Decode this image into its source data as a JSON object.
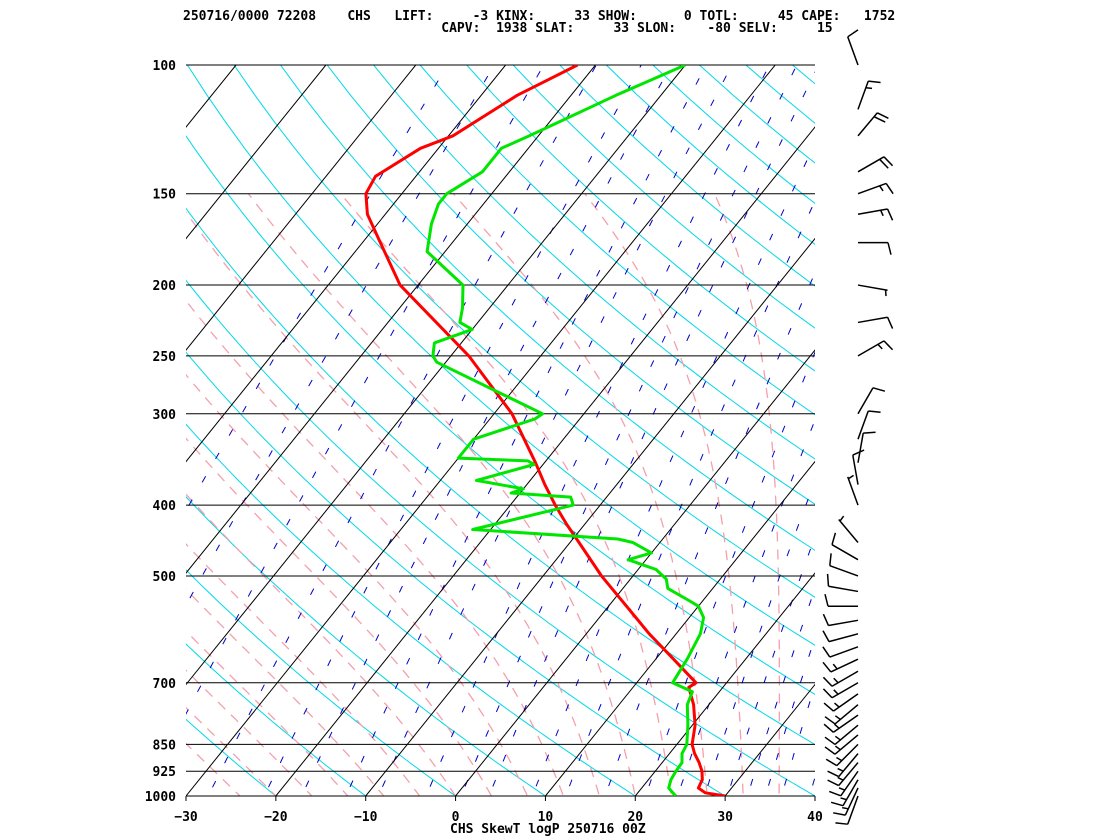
{
  "header": {
    "line1": "250716/0000 72208    CHS   LIFT:     -3 KINX:     33 SHOW:      0 TOTL:     45 CAPE:   1752",
    "line2": "                                 CAPV:  1938 SLAT:     33 SLON:    -80 SELV:     15"
  },
  "footer": "CHS SkewT logP 250716 00Z",
  "chart_data": {
    "type": "line",
    "title": "CHS SkewT logP 250716 00Z",
    "xlabel": "",
    "ylabel": "",
    "xlim": [
      -30,
      40
    ],
    "ylim": [
      1000,
      100
    ],
    "y_scale": "log (inverted)",
    "grid": true,
    "x_ticks": [
      -30,
      -20,
      -10,
      0,
      10,
      20,
      30,
      40
    ],
    "pressure_ticks": [
      100,
      150,
      200,
      250,
      300,
      400,
      500,
      700,
      850,
      925,
      1000
    ],
    "station": {
      "id": "72208",
      "name": "CHS",
      "lat": 33,
      "lon": -80,
      "elev": 15
    },
    "indices": {
      "LIFT": -3,
      "KINX": 33,
      "SHOW": 0,
      "TOTL": 45,
      "CAPE": 1752,
      "CAPV": 1938
    },
    "colors": {
      "temperature": "#ff0000",
      "dewpoint": "#00e600",
      "isotherm": "#000000",
      "dry_adiabat": "#00d8e8",
      "moist_adiabat": "#f4a0ac",
      "mixing_ratio": "#0000c8",
      "wind_barb": "#000000"
    },
    "series": [
      {
        "key": "temperature",
        "p": [
          1000,
          990,
          975,
          950,
          925,
          900,
          875,
          850,
          800,
          750,
          725,
          710,
          700,
          650,
          600,
          550,
          500,
          450,
          425,
          400,
          375,
          350,
          300,
          250,
          200,
          175,
          160,
          150,
          142,
          130,
          125,
          110,
          100
        ],
        "vals": [
          30.0,
          27.5,
          26.3,
          26.0,
          25.2,
          24.1,
          22.8,
          21.7,
          20.3,
          18.3,
          17.0,
          16.2,
          16.6,
          12.0,
          7.0,
          2.0,
          -3.5,
          -9.0,
          -12.0,
          -15.0,
          -18.0,
          -21.0,
          -28.0,
          -38.0,
          -52.0,
          -58.0,
          -62.0,
          -64.0,
          -64.5,
          -62.0,
          -59.5,
          -56.0,
          -52.0
        ]
      },
      {
        "key": "dewpoint",
        "p": [
          1000,
          975,
          950,
          925,
          900,
          875,
          850,
          800,
          750,
          720,
          700,
          650,
          600,
          570,
          550,
          540,
          520,
          505,
          490,
          475,
          465,
          450,
          445,
          432,
          400,
          390,
          385,
          380,
          370,
          352,
          348,
          345,
          325,
          305,
          300,
          255,
          250,
          240,
          230,
          225,
          215,
          200,
          180,
          165,
          155,
          150,
          140,
          130,
          125,
          110,
          100
        ],
        "vals": [
          24.5,
          23.0,
          22.5,
          22.3,
          22.2,
          21.4,
          21.1,
          19.5,
          17.6,
          17.0,
          14.0,
          13.5,
          12.7,
          11.6,
          10.0,
          8.4,
          5.0,
          4.0,
          2.0,
          -2.0,
          0.0,
          -3.0,
          -5.0,
          -22.0,
          -13.0,
          -14.0,
          -21.0,
          -20.0,
          -26.0,
          -21.0,
          -22.0,
          -30.0,
          -30.0,
          -25.0,
          -24.6,
          -41.0,
          -42.0,
          -43.0,
          -40.0,
          -42.0,
          -43.0,
          -45.0,
          -52.0,
          -54.0,
          -55.0,
          -55.0,
          -53.0,
          -53.0,
          -51.0,
          -45.0,
          -40.0
        ]
      }
    ],
    "winds": [
      {
        "p": 1000,
        "dir": 200,
        "spd": 10
      },
      {
        "p": 975,
        "dir": 205,
        "spd": 15
      },
      {
        "p": 950,
        "dir": 210,
        "spd": 15
      },
      {
        "p": 925,
        "dir": 215,
        "spd": 15
      },
      {
        "p": 900,
        "dir": 220,
        "spd": 15
      },
      {
        "p": 875,
        "dir": 220,
        "spd": 15
      },
      {
        "p": 850,
        "dir": 225,
        "spd": 15
      },
      {
        "p": 825,
        "dir": 230,
        "spd": 15
      },
      {
        "p": 800,
        "dir": 230,
        "spd": 15
      },
      {
        "p": 775,
        "dir": 235,
        "spd": 15
      },
      {
        "p": 750,
        "dir": 230,
        "spd": 15
      },
      {
        "p": 725,
        "dir": 235,
        "spd": 15
      },
      {
        "p": 700,
        "dir": 240,
        "spd": 15
      },
      {
        "p": 675,
        "dir": 240,
        "spd": 15
      },
      {
        "p": 650,
        "dir": 245,
        "spd": 15
      },
      {
        "p": 625,
        "dir": 250,
        "spd": 10
      },
      {
        "p": 600,
        "dir": 255,
        "spd": 10
      },
      {
        "p": 575,
        "dir": 260,
        "spd": 10
      },
      {
        "p": 550,
        "dir": 270,
        "spd": 10
      },
      {
        "p": 525,
        "dir": 280,
        "spd": 10
      },
      {
        "p": 500,
        "dir": 290,
        "spd": 10
      },
      {
        "p": 475,
        "dir": 300,
        "spd": 10
      },
      {
        "p": 450,
        "dir": 320,
        "spd": 5
      },
      {
        "p": 400,
        "dir": 340,
        "spd": 5
      },
      {
        "p": 375,
        "dir": 350,
        "spd": 10
      },
      {
        "p": 350,
        "dir": 10,
        "spd": 10
      },
      {
        "p": 325,
        "dir": 20,
        "spd": 10
      },
      {
        "p": 300,
        "dir": 30,
        "spd": 10
      },
      {
        "p": 250,
        "dir": 60,
        "spd": 15
      },
      {
        "p": 225,
        "dir": 80,
        "spd": 10
      },
      {
        "p": 200,
        "dir": 100,
        "spd": 5
      },
      {
        "p": 175,
        "dir": 90,
        "spd": 10
      },
      {
        "p": 160,
        "dir": 80,
        "spd": 15
      },
      {
        "p": 150,
        "dir": 70,
        "spd": 15
      },
      {
        "p": 140,
        "dir": 60,
        "spd": 20
      },
      {
        "p": 125,
        "dir": 40,
        "spd": 20
      },
      {
        "p": 115,
        "dir": 20,
        "spd": 15
      },
      {
        "p": 100,
        "dir": 340,
        "spd": 10
      }
    ]
  }
}
